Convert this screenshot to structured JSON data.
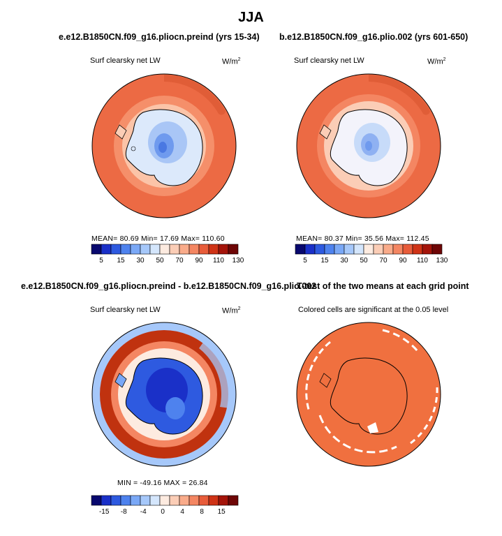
{
  "title": "JJA",
  "colors": {
    "abs_palette": [
      "#08086e",
      "#1a30c8",
      "#2e5ae0",
      "#4e82ee",
      "#7aa8f6",
      "#a6c8fa",
      "#d4e6fc",
      "#fdebe0",
      "#fbcdb6",
      "#f9ab8a",
      "#f48662",
      "#e85c3a",
      "#cf3316",
      "#a4140a",
      "#6e0606"
    ],
    "diff_palette": [
      "#08086e",
      "#1a30c8",
      "#2e5ae0",
      "#4e82ee",
      "#7aa8f6",
      "#a6c8fa",
      "#d4e6fc",
      "#fdebe0",
      "#fbcdb6",
      "#f9ab8a",
      "#f48662",
      "#e85c3a",
      "#cf3316",
      "#a4140a",
      "#6e0606"
    ],
    "significance": "#f0703f"
  },
  "chart_data": [
    {
      "type": "heatmap",
      "title": "e.e12.B1850CN.f09_g16.pliocn.preind (yrs 15-34)",
      "variable": "Surf clearsky net LW",
      "units": "W/m2",
      "units_base": "W/m",
      "units_sup": "2",
      "stats": "MEAN=  80.69  Min=  17.69  Max= 110.60",
      "colorbar_ticks": [
        "5",
        "15",
        "30",
        "50",
        "70",
        "90",
        "110",
        "130"
      ]
    },
    {
      "type": "heatmap",
      "title": "b.e12.B1850CN.f09_g16.plio.002 (yrs 601-650)",
      "variable": "Surf clearsky net LW",
      "units": "W/m2",
      "units_base": "W/m",
      "units_sup": "2",
      "stats": "MEAN=  80.37  Min=  35.56  Max= 112.45",
      "colorbar_ticks": [
        "5",
        "15",
        "30",
        "50",
        "70",
        "90",
        "110",
        "130"
      ]
    },
    {
      "type": "heatmap",
      "title": "e.e12.B1850CN.f09_g16.pliocn.preind - b.e12.B1850CN.f09_g16.plio.002",
      "variable": "Surf clearsky net LW",
      "units": "W/m2",
      "units_base": "W/m",
      "units_sup": "2",
      "stats": "MIN = -49.16  MAX =  26.84",
      "colorbar_ticks": [
        "-15",
        "-8",
        "-4",
        "0",
        "4",
        "8",
        "15"
      ]
    },
    {
      "type": "heatmap",
      "title": "T-test of the two means at each grid point",
      "subtitle": "Colored cells are significant at the 0.05 level"
    }
  ]
}
